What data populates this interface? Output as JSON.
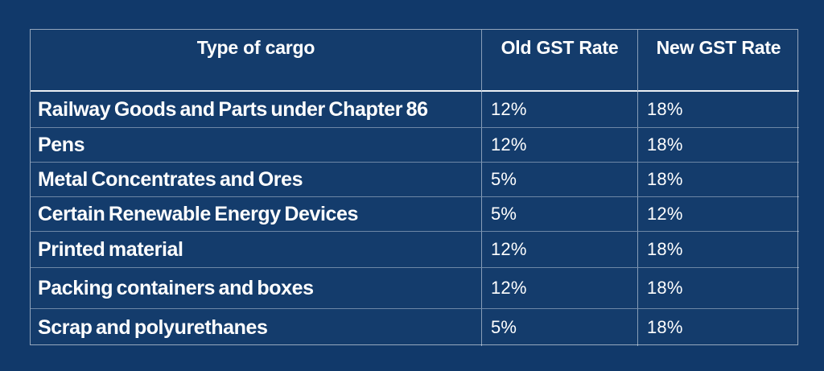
{
  "page": {
    "background_color": "#11396a",
    "text_color": "#ffffff",
    "header_separator_color": "#ffffff",
    "grid_line_color": "#8ba0bb"
  },
  "chart_data": {
    "type": "table",
    "columns": [
      "Type of cargo",
      "Old GST Rate",
      "New GST Rate"
    ],
    "rows": [
      {
        "cargo": "Railway Goods and Parts under Chapter 86",
        "old_gst_rate": "12%",
        "new_gst_rate": "18%"
      },
      {
        "cargo": "Pens",
        "old_gst_rate": "12%",
        "new_gst_rate": "18%"
      },
      {
        "cargo": "Metal Concentrates and Ores",
        "old_gst_rate": "5%",
        "new_gst_rate": "18%"
      },
      {
        "cargo": "Certain Renewable Energy Devices",
        "old_gst_rate": "5%",
        "new_gst_rate": "12%"
      },
      {
        "cargo": "Printed material",
        "old_gst_rate": "12%",
        "new_gst_rate": "18%"
      },
      {
        "cargo": "Packing containers and boxes",
        "old_gst_rate": "12%",
        "new_gst_rate": "18%"
      },
      {
        "cargo": "Scrap and polyurethanes",
        "old_gst_rate": "5%",
        "new_gst_rate": "18%"
      }
    ]
  }
}
